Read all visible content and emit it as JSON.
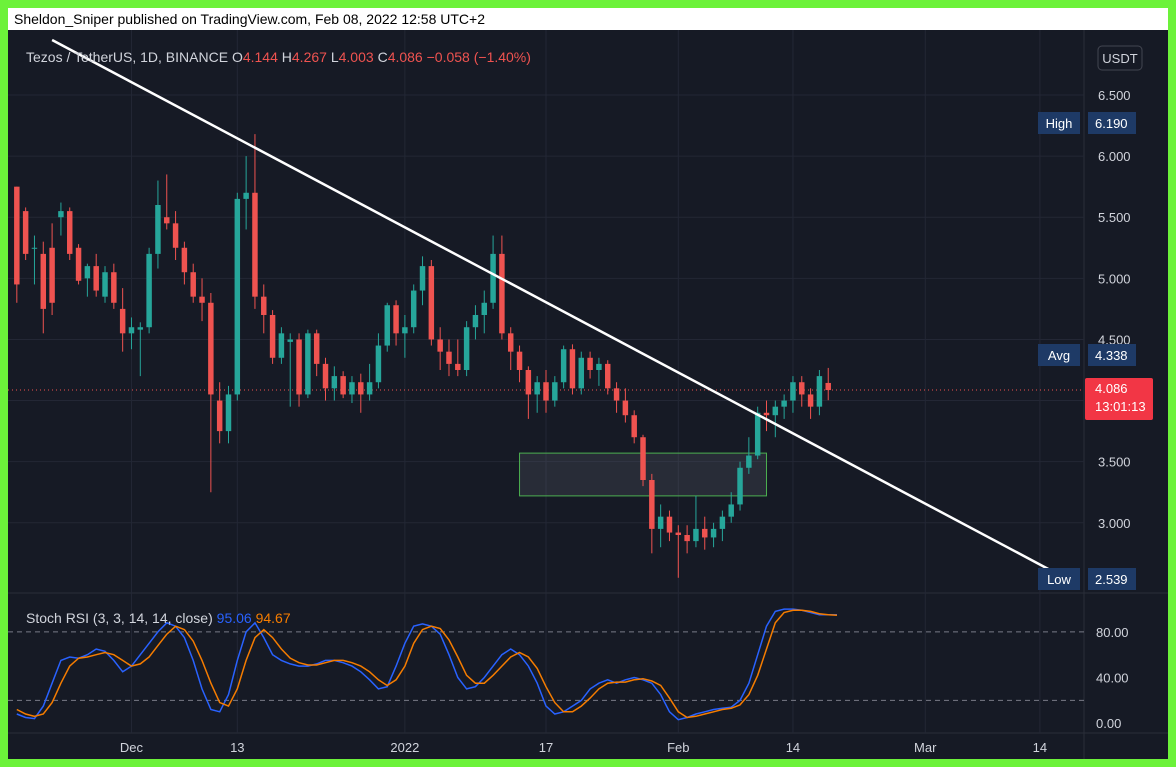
{
  "publisher_line": "Sheldon_Sniper published on TradingView.com, Feb 08, 2022 12:58 UTC+2",
  "colors": {
    "background": "#161a25",
    "up": "#26a69a",
    "down": "#ef5350",
    "k_line": "#2962ff",
    "d_line": "#f57c00",
    "trendline": "#ffffff",
    "zone_border": "#4caf50",
    "label_blue": "#1e3a66",
    "price_label": "#f23645"
  },
  "chart_data": [
    {
      "type": "candlestick",
      "header": {
        "symbol": "Tezos / TetherUS, 1D, BINANCE",
        "o_label": "O",
        "o_value": "4.144",
        "h_label": "H",
        "h_value": "4.267",
        "l_label": "L",
        "l_value": "4.003",
        "c_label": "C",
        "c_value": "4.086",
        "change": "−0.058 (−1.40%)"
      },
      "currency": "USDT",
      "y_ticks": [
        "6.500",
        "6.000",
        "5.500",
        "5.000",
        "4.500",
        "3.500",
        "3.000"
      ],
      "ylim": [
        2.45,
        6.95
      ],
      "x_ticks": [
        {
          "label": "Dec",
          "day": 0
        },
        {
          "label": "13",
          "day": 12
        },
        {
          "label": "2022",
          "day": 31
        },
        {
          "label": "17",
          "day": 47
        },
        {
          "label": "Feb",
          "day": 62
        },
        {
          "label": "14",
          "day": 75
        },
        {
          "label": "Mar",
          "day": 90
        },
        {
          "label": "14",
          "day": 103
        }
      ],
      "xlim": [
        -14,
        108
      ],
      "first_day": -13,
      "candles": [
        [
          5.75,
          5.75,
          4.8,
          4.95
        ],
        [
          5.55,
          5.58,
          5.15,
          5.2
        ],
        [
          5.25,
          5.35,
          4.95,
          5.25
        ],
        [
          5.2,
          5.3,
          4.55,
          4.75
        ],
        [
          5.25,
          5.45,
          4.7,
          4.8
        ],
        [
          5.5,
          5.62,
          5.35,
          5.55
        ],
        [
          5.55,
          5.58,
          5.15,
          5.2
        ],
        [
          5.25,
          5.28,
          4.95,
          4.98
        ],
        [
          5.0,
          5.12,
          4.85,
          5.1
        ],
        [
          5.1,
          5.2,
          4.85,
          4.9
        ],
        [
          4.85,
          5.1,
          4.8,
          5.05
        ],
        [
          5.05,
          5.12,
          4.75,
          4.8
        ],
        [
          4.75,
          4.92,
          4.4,
          4.55
        ],
        [
          4.55,
          4.68,
          4.42,
          4.6
        ],
        [
          4.58,
          4.64,
          4.2,
          4.6
        ],
        [
          4.6,
          5.25,
          4.55,
          5.2
        ],
        [
          5.2,
          5.8,
          5.08,
          5.6
        ],
        [
          5.5,
          5.85,
          5.4,
          5.45
        ],
        [
          5.45,
          5.55,
          5.15,
          5.25
        ],
        [
          5.25,
          5.3,
          4.95,
          5.05
        ],
        [
          5.05,
          5.12,
          4.8,
          4.85
        ],
        [
          4.85,
          5.0,
          4.65,
          4.8
        ],
        [
          4.8,
          4.88,
          3.25,
          4.05
        ],
        [
          4.0,
          4.15,
          3.65,
          3.75
        ],
        [
          3.75,
          4.12,
          3.65,
          4.05
        ],
        [
          4.05,
          5.7,
          4.0,
          5.65
        ],
        [
          5.65,
          6.0,
          5.4,
          5.7
        ],
        [
          5.7,
          6.18,
          4.75,
          4.85
        ],
        [
          4.85,
          4.95,
          4.55,
          4.7
        ],
        [
          4.7,
          4.74,
          4.3,
          4.35
        ],
        [
          4.35,
          4.6,
          4.3,
          4.55
        ],
        [
          4.48,
          4.55,
          3.95,
          4.5
        ],
        [
          4.5,
          4.55,
          3.95,
          4.05
        ],
        [
          4.05,
          4.58,
          4.02,
          4.55
        ],
        [
          4.55,
          4.58,
          4.2,
          4.3
        ],
        [
          4.3,
          4.35,
          4.0,
          4.1
        ],
        [
          4.1,
          4.28,
          4.0,
          4.2
        ],
        [
          4.2,
          4.24,
          4.02,
          4.05
        ],
        [
          4.05,
          4.2,
          3.98,
          4.15
        ],
        [
          4.15,
          4.22,
          3.9,
          4.05
        ],
        [
          4.05,
          4.3,
          4.0,
          4.15
        ],
        [
          4.15,
          4.55,
          4.1,
          4.45
        ],
        [
          4.45,
          4.8,
          4.4,
          4.78
        ],
        [
          4.78,
          4.82,
          4.45,
          4.55
        ],
        [
          4.55,
          4.7,
          4.35,
          4.6
        ],
        [
          4.6,
          4.95,
          4.55,
          4.9
        ],
        [
          4.9,
          5.18,
          4.78,
          5.1
        ],
        [
          5.1,
          5.15,
          4.45,
          4.5
        ],
        [
          4.5,
          4.6,
          4.25,
          4.4
        ],
        [
          4.4,
          4.5,
          4.2,
          4.3
        ],
        [
          4.3,
          4.5,
          4.2,
          4.25
        ],
        [
          4.25,
          4.65,
          4.2,
          4.6
        ],
        [
          4.6,
          4.78,
          4.5,
          4.7
        ],
        [
          4.7,
          4.9,
          4.55,
          4.8
        ],
        [
          4.8,
          5.35,
          4.75,
          5.2
        ],
        [
          5.2,
          5.35,
          4.5,
          4.55
        ],
        [
          4.55,
          4.6,
          4.25,
          4.4
        ],
        [
          4.4,
          4.45,
          4.15,
          4.25
        ],
        [
          4.25,
          4.28,
          3.85,
          4.05
        ],
        [
          4.05,
          4.2,
          3.9,
          4.15
        ],
        [
          4.15,
          4.25,
          3.9,
          4.0
        ],
        [
          4.0,
          4.2,
          3.95,
          4.15
        ],
        [
          4.15,
          4.45,
          4.1,
          4.42
        ],
        [
          4.42,
          4.46,
          4.05,
          4.1
        ],
        [
          4.1,
          4.4,
          4.05,
          4.35
        ],
        [
          4.35,
          4.4,
          4.18,
          4.25
        ],
        [
          4.25,
          4.35,
          4.12,
          4.3
        ],
        [
          4.3,
          4.33,
          4.05,
          4.1
        ],
        [
          4.1,
          4.15,
          3.9,
          4.0
        ],
        [
          4.0,
          4.1,
          3.82,
          3.88
        ],
        [
          3.88,
          3.92,
          3.65,
          3.7
        ],
        [
          3.7,
          3.72,
          3.3,
          3.35
        ],
        [
          3.35,
          3.4,
          2.75,
          2.95
        ],
        [
          2.95,
          3.15,
          2.8,
          3.05
        ],
        [
          3.05,
          3.1,
          2.85,
          2.92
        ],
        [
          2.92,
          2.98,
          2.55,
          2.9
        ],
        [
          2.9,
          2.98,
          2.75,
          2.85
        ],
        [
          2.85,
          3.22,
          2.8,
          2.95
        ],
        [
          2.95,
          3.05,
          2.78,
          2.88
        ],
        [
          2.88,
          3.0,
          2.8,
          2.95
        ],
        [
          2.95,
          3.1,
          2.85,
          3.05
        ],
        [
          3.05,
          3.25,
          3.0,
          3.15
        ],
        [
          3.15,
          3.5,
          3.1,
          3.45
        ],
        [
          3.45,
          3.7,
          3.4,
          3.55
        ],
        [
          3.55,
          3.95,
          3.52,
          3.9
        ],
        [
          3.9,
          4.0,
          3.75,
          3.88
        ],
        [
          3.88,
          4.0,
          3.7,
          3.95
        ],
        [
          3.95,
          4.05,
          3.85,
          4.0
        ],
        [
          4.0,
          4.2,
          3.9,
          4.15
        ],
        [
          4.15,
          4.2,
          3.95,
          4.05
        ],
        [
          4.05,
          4.1,
          3.85,
          3.95
        ],
        [
          3.95,
          4.25,
          3.88,
          4.2
        ],
        [
          4.144,
          4.267,
          4.003,
          4.086
        ]
      ],
      "trendline": {
        "start": {
          "day": -9,
          "price": 6.95
        },
        "end": {
          "day": 104,
          "price": 2.62
        }
      },
      "zone": {
        "day_start": 44,
        "day_end": 72,
        "price_low": 3.22,
        "price_high": 3.57
      },
      "current_price": 4.086,
      "labels": {
        "high_label": "High",
        "high_value": "6.190",
        "avg_label": "Avg",
        "avg_value": "4.338",
        "low_label": "Low",
        "low_value": "2.539",
        "current_value": "4.086",
        "countdown": "13:01:13"
      }
    },
    {
      "type": "line",
      "title": "Stoch RSI (3, 3, 14, 14, close)",
      "ylim": [
        -6,
        108
      ],
      "y_ticks": [
        "80.00",
        "40.00",
        "0.00"
      ],
      "bands": [
        80,
        20
      ],
      "series": [
        {
          "name": "K",
          "value_label": "95.06",
          "values": [
            8,
            5,
            4,
            15,
            35,
            55,
            58,
            57,
            60,
            65,
            63,
            55,
            45,
            50,
            60,
            70,
            80,
            88,
            85,
            75,
            55,
            30,
            12,
            10,
            25,
            55,
            80,
            88,
            75,
            60,
            55,
            52,
            50,
            50,
            52,
            55,
            55,
            53,
            50,
            45,
            38,
            30,
            32,
            50,
            70,
            85,
            87,
            85,
            78,
            60,
            40,
            30,
            32,
            40,
            50,
            60,
            65,
            60,
            50,
            35,
            15,
            8,
            10,
            15,
            20,
            30,
            35,
            38,
            35,
            38,
            40,
            38,
            35,
            25,
            10,
            3,
            5,
            8,
            10,
            12,
            13,
            14,
            20,
            35,
            60,
            85,
            98,
            100,
            100,
            99,
            97,
            95,
            95,
            95.06
          ]
        },
        {
          "name": "D",
          "value_label": "94.67",
          "values": [
            12,
            8,
            6,
            8,
            18,
            35,
            50,
            57,
            58,
            60,
            62,
            60,
            55,
            50,
            52,
            58,
            68,
            78,
            85,
            82,
            72,
            55,
            35,
            18,
            15,
            30,
            55,
            75,
            82,
            75,
            65,
            57,
            53,
            51,
            51,
            53,
            55,
            55,
            53,
            50,
            45,
            38,
            33,
            38,
            50,
            70,
            82,
            85,
            83,
            73,
            58,
            42,
            35,
            35,
            42,
            50,
            58,
            62,
            58,
            48,
            32,
            18,
            10,
            10,
            15,
            22,
            30,
            35,
            36,
            36,
            38,
            39,
            37,
            33,
            22,
            10,
            5,
            6,
            8,
            10,
            12,
            13,
            16,
            25,
            42,
            65,
            88,
            97,
            99,
            99,
            98,
            96,
            95,
            94.67
          ]
        }
      ],
      "x_ticks": [
        "Dec",
        "13",
        "2022",
        "17",
        "Feb",
        "14",
        "Mar",
        "14"
      ]
    }
  ]
}
